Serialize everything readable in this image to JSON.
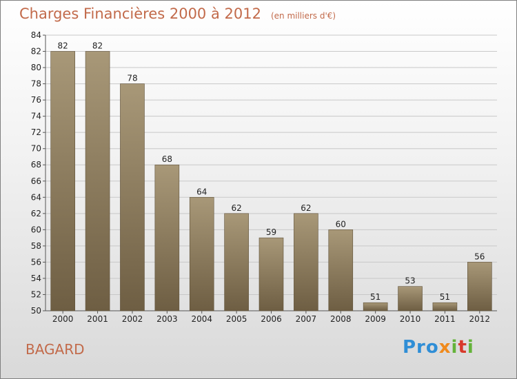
{
  "title": "Charges Financières 2000 à 2012",
  "unit": "(en milliers d'€)",
  "place": "BAGARD",
  "logo": {
    "p1": "Pro",
    "p2": "x",
    "p3": "i",
    "p4": "t",
    "p5": "i"
  },
  "colors": {
    "bar_light": "#a89878",
    "bar_dark": "#6e5e43",
    "title": "#c26a4a"
  },
  "chart_data": {
    "type": "bar",
    "title": "Charges Financières 2000 à 2012",
    "categories": [
      "2000",
      "2001",
      "2002",
      "2003",
      "2004",
      "2005",
      "2006",
      "2007",
      "2008",
      "2009",
      "2010",
      "2011",
      "2012"
    ],
    "values": [
      82,
      82,
      78,
      68,
      64,
      62,
      59,
      62,
      60,
      51,
      53,
      51,
      56
    ],
    "yticks": [
      50,
      52,
      54,
      56,
      58,
      60,
      62,
      64,
      66,
      68,
      70,
      72,
      74,
      76,
      78,
      80,
      82,
      84
    ],
    "ylim": [
      50,
      84
    ],
    "grid": true,
    "xlabel": "",
    "ylabel": ""
  }
}
